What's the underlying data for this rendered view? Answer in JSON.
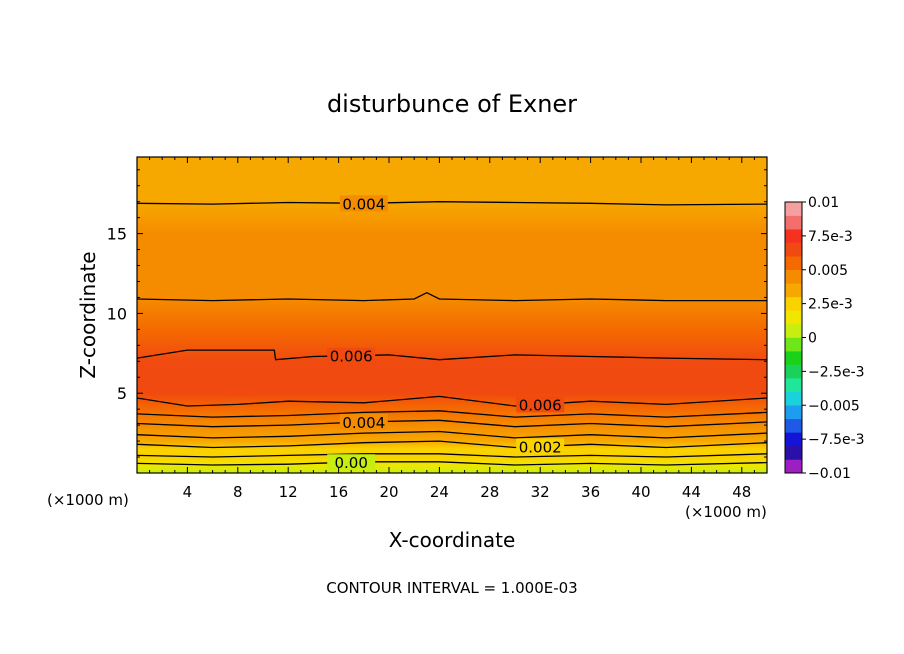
{
  "chart_data": {
    "type": "heatmap",
    "title": "disturbunce of Exner",
    "xlabel": "X-coordinate",
    "ylabel": "Z-coordinate",
    "x_unit_left": "(×1000 m)",
    "x_unit_right": "(×1000 m)",
    "xlim": [
      0,
      50
    ],
    "ylim": [
      0,
      19.8
    ],
    "x_ticks": [
      4,
      8,
      12,
      16,
      20,
      24,
      28,
      32,
      36,
      40,
      44,
      48
    ],
    "y_ticks": [
      5,
      10,
      15
    ],
    "footer": "CONTOUR INTERVAL = 1.000E-03",
    "z_levels": [
      {
        "z": 0.0,
        "value": 0.0
      },
      {
        "z": 0.5,
        "value": 0.0012
      },
      {
        "z": 1.0,
        "value": 0.0021
      },
      {
        "z": 1.5,
        "value": 0.0029
      },
      {
        "z": 2.0,
        "value": 0.0036
      },
      {
        "z": 3.0,
        "value": 0.0047
      },
      {
        "z": 4.0,
        "value": 0.0059
      },
      {
        "z": 5.0,
        "value": 0.0066
      },
      {
        "z": 6.0,
        "value": 0.0068
      },
      {
        "z": 7.0,
        "value": 0.0061
      },
      {
        "z": 9.0,
        "value": 0.0053
      },
      {
        "z": 11.0,
        "value": 0.0049
      },
      {
        "z": 13.0,
        "value": 0.0044
      },
      {
        "z": 15.0,
        "value": 0.0041
      },
      {
        "z": 17.0,
        "value": 0.0038
      },
      {
        "z": 19.8,
        "value": 0.0032
      }
    ],
    "contours": [
      {
        "value": 0.004,
        "label": "0.004",
        "x": [
          0,
          6,
          12,
          18,
          24,
          30,
          36,
          42,
          50
        ],
        "z": [
          16.9,
          16.85,
          16.95,
          16.9,
          17.0,
          16.95,
          16.9,
          16.8,
          16.85
        ],
        "label_x": 18
      },
      {
        "value": 0.005,
        "label": "",
        "x": [
          0,
          6,
          12,
          18,
          22,
          23,
          24,
          30,
          36,
          42,
          50
        ],
        "z": [
          10.9,
          10.8,
          10.9,
          10.8,
          10.9,
          11.3,
          10.9,
          10.8,
          10.9,
          10.8,
          10.8
        ],
        "label_x": null
      },
      {
        "value": 0.006,
        "label": "0.006",
        "x": [
          0,
          4,
          10.9,
          11.0,
          14,
          20,
          24,
          30,
          36,
          42,
          50
        ],
        "z": [
          7.2,
          7.7,
          7.7,
          7.1,
          7.3,
          7.4,
          7.1,
          7.4,
          7.3,
          7.2,
          7.1
        ],
        "label_x": 17
      },
      {
        "value": 0.006,
        "label": "0.006",
        "x": [
          0,
          4,
          8,
          12,
          18,
          24,
          30,
          36,
          42,
          50
        ],
        "z": [
          4.7,
          4.2,
          4.3,
          4.5,
          4.4,
          4.8,
          4.2,
          4.5,
          4.3,
          4.7
        ],
        "label_x": 32
      },
      {
        "value": 0.005,
        "label": "",
        "x": [
          0,
          6,
          12,
          18,
          24,
          30,
          36,
          42,
          50
        ],
        "z": [
          3.7,
          3.5,
          3.6,
          3.8,
          3.9,
          3.5,
          3.7,
          3.5,
          3.8
        ],
        "label_x": null
      },
      {
        "value": 0.004,
        "label": "0.004",
        "x": [
          0,
          6,
          12,
          18,
          24,
          30,
          36,
          42,
          50
        ],
        "z": [
          3.1,
          2.9,
          3.0,
          3.2,
          3.3,
          2.9,
          3.1,
          2.9,
          3.2
        ],
        "label_x": 18
      },
      {
        "value": 0.003,
        "label": "",
        "x": [
          0,
          6,
          12,
          18,
          24,
          30,
          36,
          42,
          50
        ],
        "z": [
          2.4,
          2.2,
          2.3,
          2.5,
          2.6,
          2.2,
          2.4,
          2.2,
          2.5
        ],
        "label_x": null
      },
      {
        "value": 0.002,
        "label": "0.002",
        "x": [
          0,
          6,
          12,
          18,
          24,
          30,
          36,
          42,
          50
        ],
        "z": [
          1.8,
          1.6,
          1.7,
          1.9,
          2.0,
          1.6,
          1.8,
          1.6,
          1.9
        ],
        "label_x": 32
      },
      {
        "value": 0.001,
        "label": "",
        "x": [
          0,
          6,
          12,
          18,
          24,
          30,
          36,
          42,
          50
        ],
        "z": [
          1.1,
          1.0,
          1.1,
          1.2,
          1.2,
          1.0,
          1.1,
          1.0,
          1.2
        ],
        "label_x": null
      },
      {
        "value": 0.0,
        "label": "0.00",
        "x": [
          0,
          6,
          12,
          18,
          24,
          30,
          36,
          42,
          50
        ],
        "z": [
          0.6,
          0.5,
          0.55,
          0.7,
          0.7,
          0.5,
          0.6,
          0.5,
          0.65
        ],
        "label_x": 17
      }
    ],
    "colorbar": {
      "range": [
        -0.01,
        0.01
      ],
      "labels": [
        {
          "value": 0.01,
          "text": "0.01"
        },
        {
          "value": 0.0075,
          "text": "7.5e-3"
        },
        {
          "value": 0.005,
          "text": "0.005"
        },
        {
          "value": 0.0025,
          "text": "2.5e-3"
        },
        {
          "value": 0.0,
          "text": "0"
        },
        {
          "value": -0.0025,
          "text": "−2.5e-3"
        },
        {
          "value": -0.005,
          "text": "−0.005"
        },
        {
          "value": -0.0075,
          "text": "−7.5e-3"
        },
        {
          "value": -0.01,
          "text": "−0.01"
        }
      ],
      "colors": [
        "#9b1fc2",
        "#2a10a8",
        "#1414d8",
        "#1e5ae6",
        "#1e9cf0",
        "#19d2dc",
        "#1ee69b",
        "#19d25a",
        "#19d219",
        "#6ee619",
        "#c8ee10",
        "#f0e600",
        "#fad200",
        "#f7a800",
        "#f58c00",
        "#f56a00",
        "#f04a10",
        "#f53220",
        "#f56e6e",
        "#f5a0a0"
      ]
    }
  }
}
